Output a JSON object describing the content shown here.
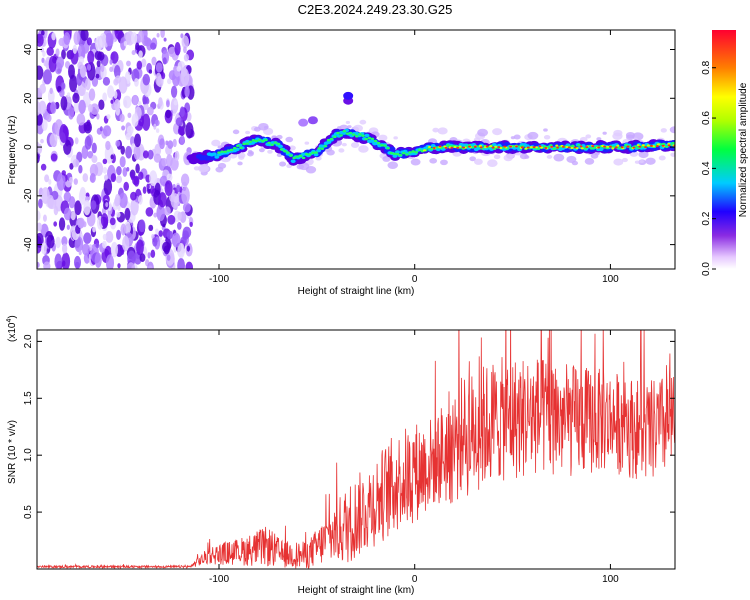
{
  "title": "C2E3.2024.249.23.30.G25",
  "colors": {
    "snr_line": "#e63232",
    "background": "#ffffff",
    "blob": "#6a0dd6",
    "core": "#ff2020"
  },
  "chart_data": [
    {
      "type": "heatmap",
      "name": "spectrogram",
      "xlabel": "Height of straight line (km)",
      "ylabel": "Frequency (Hz)",
      "xlim": [
        -193,
        133
      ],
      "ylim": [
        -50,
        48
      ],
      "xticks": [
        -100,
        0,
        100
      ],
      "xtick_labels": [
        "-100",
        "0",
        "100"
      ],
      "yticks": [
        -40,
        -20,
        0,
        20,
        40
      ],
      "ytick_labels": [
        "-40",
        "-20",
        "0",
        "20",
        "40"
      ],
      "ridge": {
        "description_x": [
          -113,
          -100,
          -90,
          -80,
          -70,
          -62,
          -50,
          -40,
          -35,
          -25,
          -15,
          -10,
          0,
          10,
          30,
          60,
          90,
          110,
          133
        ],
        "frequency_hz": [
          -5,
          -3,
          0,
          3,
          1,
          -5,
          -2,
          5,
          6,
          4,
          0,
          -3,
          -2,
          0,
          0,
          0,
          0,
          0,
          1
        ]
      },
      "colorbar": {
        "label": "Normalized spectral amplitude",
        "range": [
          0,
          0.95
        ],
        "ticks": [
          0.0,
          0.2,
          0.4,
          0.6,
          0.8
        ],
        "tick_labels": [
          "0.0",
          "0.2",
          "0.4",
          "0.6",
          "0.8"
        ]
      }
    },
    {
      "type": "line",
      "name": "snr",
      "xlabel": "Height of straight line (km)",
      "ylabel": "SNR (10 * v/v)",
      "multiplier_label": "(x10",
      "multiplier_exp": "4",
      "multiplier_close": ")",
      "xlim": [
        -193,
        133
      ],
      "ylim": [
        0,
        2.1
      ],
      "xticks": [
        -100,
        0,
        100
      ],
      "xtick_labels": [
        "-100",
        "0",
        "100"
      ],
      "yticks": [
        0.5,
        1.0,
        1.5,
        2.0
      ],
      "ytick_labels": [
        "0.5",
        "1.0",
        "1.5",
        "2.0"
      ],
      "envelope": {
        "x": [
          -193,
          -115,
          -105,
          -90,
          -75,
          -68,
          -55,
          -42,
          -35,
          -20,
          -10,
          0,
          10,
          20,
          40,
          60,
          80,
          100,
          120,
          133
        ],
        "mean": [
          0.02,
          0.02,
          0.12,
          0.15,
          0.2,
          0.13,
          0.12,
          0.3,
          0.38,
          0.6,
          0.75,
          0.85,
          0.95,
          1.1,
          1.3,
          1.35,
          1.3,
          1.3,
          1.2,
          1.3
        ],
        "spread": [
          0.01,
          0.01,
          0.08,
          0.12,
          0.18,
          0.12,
          0.12,
          0.25,
          0.35,
          0.4,
          0.45,
          0.45,
          0.4,
          0.55,
          0.55,
          0.55,
          0.5,
          0.45,
          0.45,
          0.45
        ]
      }
    }
  ]
}
